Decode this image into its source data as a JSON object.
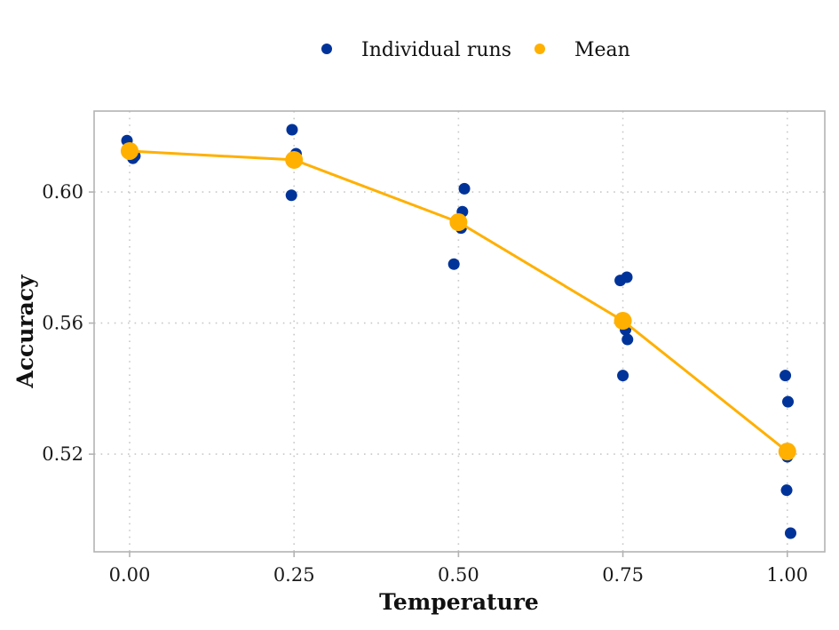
{
  "chart_data": {
    "type": "scatter",
    "title": "",
    "xlabel": "Temperature",
    "ylabel": "Accuracy",
    "xlim": [
      -0.054,
      1.057
    ],
    "ylim": [
      0.4902,
      0.6247
    ],
    "xticks": [
      0.0,
      0.25,
      0.5,
      0.75,
      1.0
    ],
    "xtick_labels": [
      "0.00",
      "0.25",
      "0.50",
      "0.75",
      "1.00"
    ],
    "yticks": [
      0.52,
      0.56,
      0.6
    ],
    "ytick_labels": [
      "0.52",
      "0.56",
      "0.60"
    ],
    "grid": true,
    "legend_position": "top",
    "legend": [
      {
        "label": "Individual runs",
        "color": "#003399"
      },
      {
        "label": "Mean",
        "color": "#FFB000"
      }
    ],
    "series": [
      {
        "name": "Individual runs",
        "kind": "points",
        "color": "#003399",
        "points": [
          {
            "x": -0.004,
            "y": 0.6157
          },
          {
            "x": 0.005,
            "y": 0.6103
          },
          {
            "x": 0.008,
            "y": 0.611
          },
          {
            "x": 0.247,
            "y": 0.619
          },
          {
            "x": 0.253,
            "y": 0.6117
          },
          {
            "x": 0.252,
            "y": 0.609
          },
          {
            "x": 0.246,
            "y": 0.599
          },
          {
            "x": 0.509,
            "y": 0.601
          },
          {
            "x": 0.506,
            "y": 0.594
          },
          {
            "x": 0.504,
            "y": 0.589
          },
          {
            "x": 0.493,
            "y": 0.578
          },
          {
            "x": 0.746,
            "y": 0.573
          },
          {
            "x": 0.756,
            "y": 0.574
          },
          {
            "x": 0.754,
            "y": 0.558
          },
          {
            "x": 0.757,
            "y": 0.555
          },
          {
            "x": 0.75,
            "y": 0.544
          },
          {
            "x": 0.997,
            "y": 0.544
          },
          {
            "x": 1.001,
            "y": 0.536
          },
          {
            "x": 1.0,
            "y": 0.5192
          },
          {
            "x": 0.999,
            "y": 0.509
          },
          {
            "x": 1.005,
            "y": 0.4959
          }
        ]
      },
      {
        "name": "Mean",
        "kind": "line+points",
        "color": "#FFB000",
        "points": [
          {
            "x": 0.0,
            "y": 0.6125
          },
          {
            "x": 0.25,
            "y": 0.6098
          },
          {
            "x": 0.5,
            "y": 0.5908
          },
          {
            "x": 0.75,
            "y": 0.5607
          },
          {
            "x": 1.0,
            "y": 0.5208
          }
        ]
      }
    ]
  }
}
